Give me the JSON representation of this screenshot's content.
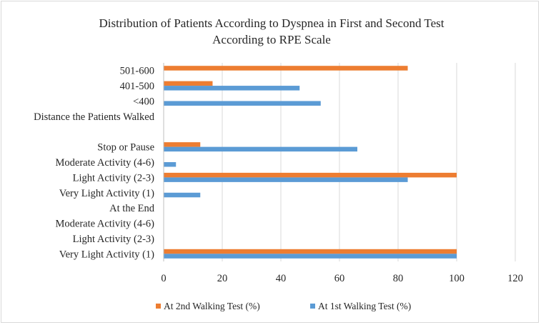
{
  "chart_data": {
    "type": "bar",
    "orientation": "horizontal",
    "title": [
      "Distribution of Patients According to Dyspnea in First and Second Test",
      "According to RPE Scale"
    ],
    "categories": [
      "Very Light Activity (1)",
      "Light Activity (2-3)",
      "Moderate Activity (4-6)",
      "At the End",
      "Very Light Activity (1)",
      "Light Activity (2-3)",
      "Moderate Activity (4-6)",
      "Stop or Pause",
      "",
      "Distance the Patients Walked",
      "<400",
      "401-500",
      "501-600"
    ],
    "series": [
      {
        "name": "At 1st Walking Test (%)",
        "color": "#5b9bd5",
        "values": [
          100,
          0,
          0,
          0,
          12.5,
          83.3,
          4.2,
          66.1,
          0,
          0,
          53.6,
          46.4,
          0
        ]
      },
      {
        "name": "At 2nd  Walking Test (%)",
        "color": "#ed7d31",
        "values": [
          100,
          0,
          0,
          0,
          0,
          100,
          0,
          12.5,
          0,
          0,
          0,
          16.7,
          83.3
        ]
      }
    ],
    "xlim": [
      0,
      120
    ],
    "xticks": [
      0,
      20,
      40,
      60,
      80,
      100,
      120
    ],
    "grid": "vertical",
    "legend": "bottom"
  }
}
